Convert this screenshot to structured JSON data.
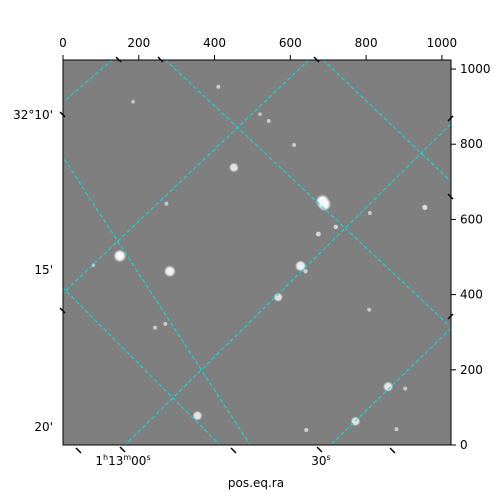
{
  "chart_data": {
    "type": "scatter",
    "subtype": "astronomical-image-with-wcs-grid",
    "title": "",
    "xlabel": "pos.eq.ra",
    "ylabel": "",
    "pixel_axes": {
      "x_ticks": [
        0,
        200,
        400,
        600,
        800,
        1000
      ],
      "y_ticks": [
        0,
        200,
        400,
        600,
        800,
        1000
      ],
      "xlim": [
        0,
        1024
      ],
      "ylim": [
        0,
        1024
      ]
    },
    "world_axes": {
      "ra_labels": [
        "1ʰ13ᵐ00ˢ",
        "30ˢ"
      ],
      "dec_labels": [
        "32°10'",
        "15'",
        "20'"
      ]
    },
    "grid": true,
    "grid_color": "#00e5e5",
    "image_background": "#808080",
    "stars": [
      {
        "x": 685,
        "y": 648,
        "brightness": 1.0
      },
      {
        "x": 690,
        "y": 640,
        "brightness": 0.95
      },
      {
        "x": 150,
        "y": 503,
        "brightness": 0.9
      },
      {
        "x": 282,
        "y": 462,
        "brightness": 0.8
      },
      {
        "x": 627,
        "y": 476,
        "brightness": 0.75
      },
      {
        "x": 451,
        "y": 738,
        "brightness": 0.6
      },
      {
        "x": 568,
        "y": 393,
        "brightness": 0.55
      },
      {
        "x": 858,
        "y": 155,
        "brightness": 0.65
      },
      {
        "x": 355,
        "y": 78,
        "brightness": 0.6
      },
      {
        "x": 772,
        "y": 63,
        "brightness": 0.6
      },
      {
        "x": 955,
        "y": 632,
        "brightness": 0.5
      },
      {
        "x": 674,
        "y": 561,
        "brightness": 0.45
      },
      {
        "x": 720,
        "y": 580,
        "brightness": 0.4
      },
      {
        "x": 640,
        "y": 462,
        "brightness": 0.35
      },
      {
        "x": 410,
        "y": 953,
        "brightness": 0.3
      },
      {
        "x": 610,
        "y": 798,
        "brightness": 0.3
      },
      {
        "x": 543,
        "y": 862,
        "brightness": 0.3
      },
      {
        "x": 273,
        "y": 642,
        "brightness": 0.3
      },
      {
        "x": 810,
        "y": 617,
        "brightness": 0.3
      },
      {
        "x": 808,
        "y": 360,
        "brightness": 0.3
      },
      {
        "x": 270,
        "y": 322,
        "brightness": 0.3
      },
      {
        "x": 243,
        "y": 312,
        "brightness": 0.3
      },
      {
        "x": 642,
        "y": 40,
        "brightness": 0.35
      },
      {
        "x": 903,
        "y": 150,
        "brightness": 0.3
      },
      {
        "x": 880,
        "y": 42,
        "brightness": 0.3
      },
      {
        "x": 185,
        "y": 913,
        "brightness": 0.25
      },
      {
        "x": 80,
        "y": 478,
        "brightness": 0.25
      },
      {
        "x": 520,
        "y": 880,
        "brightness": 0.25
      }
    ]
  }
}
